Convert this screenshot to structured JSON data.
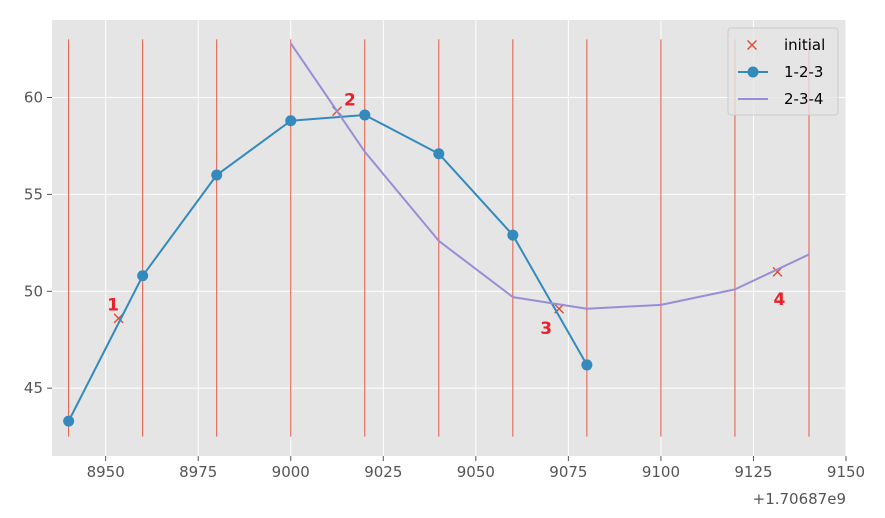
{
  "chart_data": {
    "type": "line",
    "xlim": [
      1706878935.5,
      1706879150
    ],
    "ylim": [
      41.5,
      64
    ],
    "x_offset_label": "+1.70687e9",
    "xticks": [
      {
        "label": "8950",
        "value": 1706878950
      },
      {
        "label": "8975",
        "value": 1706878975
      },
      {
        "label": "9000",
        "value": 1706879000
      },
      {
        "label": "9025",
        "value": 1706879025
      },
      {
        "label": "9050",
        "value": 1706879050
      },
      {
        "label": "9075",
        "value": 1706879075
      },
      {
        "label": "9100",
        "value": 1706879100
      },
      {
        "label": "9125",
        "value": 1706879125
      },
      {
        "label": "9150",
        "value": 1706879150
      }
    ],
    "yticks": [
      {
        "label": "45",
        "value": 45
      },
      {
        "label": "50",
        "value": 50
      },
      {
        "label": "55",
        "value": 55
      },
      {
        "label": "60",
        "value": 60
      }
    ],
    "vlines": {
      "x": [
        1706878940,
        1706878960,
        1706878980,
        1706879000,
        1706879020,
        1706879040,
        1706879060,
        1706879080,
        1706879100,
        1706879120,
        1706879140
      ],
      "ymin": 42.5,
      "ymax": 63,
      "color": "#E24A33"
    },
    "series": [
      {
        "name": "initial",
        "style": "x-markers",
        "color": "#E24A33",
        "x": [
          1706878953.5,
          1706879012.5,
          1706879072.5,
          1706879131.5
        ],
        "y": [
          48.6,
          59.3,
          49.1,
          51.0
        ]
      },
      {
        "name": "1-2-3",
        "style": "line-markers",
        "color": "#348ABD",
        "x": [
          1706878940,
          1706878960,
          1706878980,
          1706879000,
          1706879020,
          1706879040,
          1706879060,
          1706879080
        ],
        "y": [
          43.3,
          50.8,
          56.0,
          58.8,
          59.1,
          57.1,
          52.9,
          46.2
        ]
      },
      {
        "name": "2-3-4",
        "style": "line",
        "color": "#988ED5",
        "x": [
          1706879000,
          1706879020,
          1706879040,
          1706879060,
          1706879080,
          1706879100,
          1706879120,
          1706879140
        ],
        "y": [
          62.8,
          57.2,
          52.6,
          49.7,
          49.1,
          49.3,
          50.1,
          51.9
        ]
      }
    ],
    "annotations": [
      {
        "text": "1",
        "x": 1706878952,
        "y": 49.0
      },
      {
        "text": "2",
        "x": 1706879016,
        "y": 59.6
      },
      {
        "text": "3",
        "x": 1706879069,
        "y": 47.8
      },
      {
        "text": "4",
        "x": 1706879132,
        "y": 49.3
      }
    ],
    "legend": {
      "position": "top-right"
    },
    "grid": true,
    "background": "#E5E5E5"
  }
}
